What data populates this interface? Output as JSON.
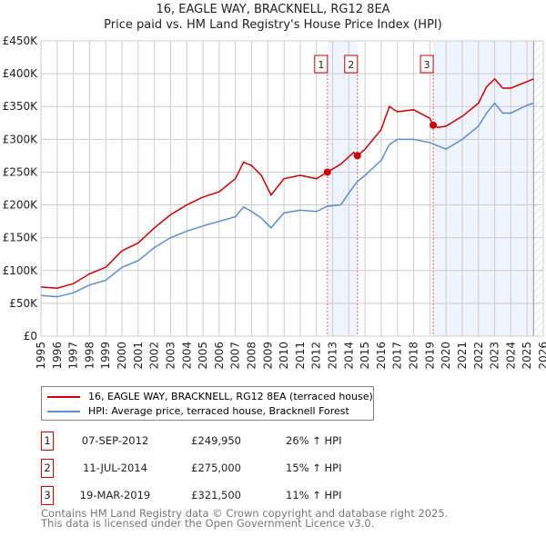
{
  "chart_data": {
    "type": "line",
    "title": "16, EAGLE WAY, BRACKNELL, RG12 8EA",
    "subtitle": "Price paid vs. HM Land Registry's House Price Index (HPI)",
    "xlim": [
      1995,
      2026
    ],
    "ylim": [
      0,
      450000
    ],
    "yticks": [
      "£0",
      "£50K",
      "£100K",
      "£150K",
      "£200K",
      "£250K",
      "£300K",
      "£350K",
      "£400K",
      "£450K"
    ],
    "xticks": [
      "1995",
      "1996",
      "1997",
      "1998",
      "1999",
      "2000",
      "2001",
      "2002",
      "2003",
      "2004",
      "2005",
      "2006",
      "2007",
      "2008",
      "2009",
      "2010",
      "2011",
      "2012",
      "2013",
      "2014",
      "2015",
      "2016",
      "2017",
      "2018",
      "2019",
      "2020",
      "2021",
      "2022",
      "2023",
      "2024",
      "2025",
      "2026"
    ],
    "grid": true,
    "series": [
      {
        "name": "16, EAGLE WAY, BRACKNELL, RG12 8EA (terraced house)",
        "color": "#cc0000",
        "x": [
          1995,
          1996,
          1997,
          1998,
          1999,
          2000,
          2001,
          2002,
          2003,
          2004,
          2005,
          2006,
          2007,
          2007.5,
          2008,
          2008.6,
          2009.2,
          2010,
          2011,
          2012,
          2012.68,
          2013.5,
          2014.3,
          2014.53,
          2015,
          2016,
          2016.5,
          2017,
          2018,
          2019,
          2019.21,
          2019.5,
          2020,
          2021,
          2022,
          2022.5,
          2023,
          2023.5,
          2024,
          2025,
          2025.4
        ],
        "y": [
          75,
          73,
          80,
          95,
          105,
          130,
          142,
          165,
          185,
          200,
          212,
          220,
          240,
          265,
          260,
          245,
          215,
          240,
          245,
          240,
          250,
          262,
          280,
          275,
          285,
          315,
          350,
          342,
          345,
          332,
          321.5,
          318,
          320,
          335,
          355,
          380,
          392,
          378,
          378,
          388,
          392
        ]
      },
      {
        "name": "HPI: Average price, terraced house, Bracknell Forest",
        "color": "#5b8fd0",
        "x": [
          1995,
          1996,
          1997,
          1998,
          1999,
          2000,
          2001,
          2002,
          2003,
          2004,
          2005,
          2006,
          2007,
          2007.5,
          2008,
          2008.6,
          2009.2,
          2010,
          2011,
          2012,
          2012.68,
          2013.5,
          2014,
          2014.5,
          2015,
          2016,
          2016.5,
          2017,
          2018,
          2019,
          2020,
          2021,
          2022,
          2022.5,
          2023,
          2023.5,
          2024,
          2025,
          2025.4
        ],
        "y": [
          62,
          60,
          66,
          78,
          85,
          105,
          115,
          135,
          150,
          160,
          168,
          175,
          182,
          197,
          190,
          180,
          165,
          188,
          192,
          190,
          198,
          200,
          218,
          235,
          245,
          268,
          292,
          300,
          300,
          295,
          285,
          300,
          320,
          340,
          355,
          340,
          340,
          352,
          355
        ]
      }
    ],
    "sales": [
      {
        "label": "1",
        "date": "07-SEP-2012",
        "x": 2012.68,
        "price": "£249,950",
        "value": 249.95,
        "hpi": "26% ↑ HPI"
      },
      {
        "label": "2",
        "date": "11-JUL-2014",
        "x": 2014.53,
        "price": "£275,000",
        "value": 275,
        "hpi": "15% ↑ HPI"
      },
      {
        "label": "3",
        "date": "19-MAR-2019",
        "x": 2019.21,
        "price": "£321,500",
        "value": 321.5,
        "hpi": "11% ↑ HPI"
      }
    ],
    "shaded": [
      [
        2012.68,
        2014.53
      ],
      [
        2019.21,
        2025.4
      ]
    ],
    "hatched_from": 2025.4
  },
  "footer": [
    "Contains HM Land Registry data © Crown copyright and database right 2025.",
    "This data is licensed under the Open Government Licence v3.0."
  ]
}
